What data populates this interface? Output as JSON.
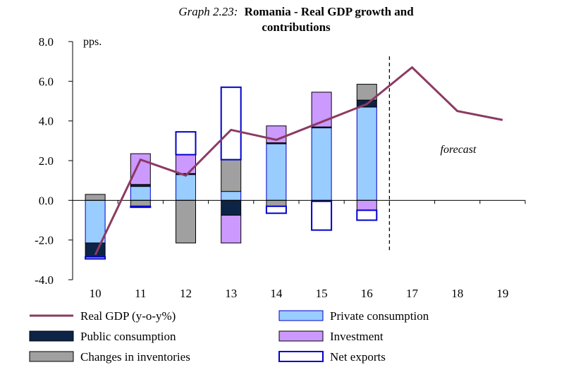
{
  "chart_data": {
    "type": "bar",
    "title_prefix": "Graph 2.23:",
    "title_line1": "Romania - Real GDP growth and",
    "title_line2": "contributions",
    "ylabel": "pps.",
    "xlabel": "",
    "ylim": [
      -4.0,
      8.0
    ],
    "yticks": [
      "8.0",
      "6.0",
      "4.0",
      "2.0",
      "0.0",
      "-2.0",
      "-4.0"
    ],
    "ytick_values": [
      8,
      6,
      4,
      2,
      0,
      -2,
      -4
    ],
    "categories": [
      "10",
      "11",
      "12",
      "13",
      "14",
      "15",
      "16",
      "17",
      "18",
      "19"
    ],
    "annotation": "forecast",
    "forecast_from_index": 6.5,
    "stack_order": [
      "Private consumption",
      "Public consumption",
      "Investment",
      "Changes in inventories",
      "Net exports"
    ],
    "series": [
      {
        "name": "Private consumption",
        "color": "#99ccff",
        "edge": "#0000cc",
        "values": [
          -2.15,
          0.7,
          1.3,
          0.45,
          2.85,
          3.65,
          4.7,
          null,
          null,
          null
        ]
      },
      {
        "name": "Public consumption",
        "color": "#0d2447",
        "edge": "#000000",
        "values": [
          -0.7,
          0.1,
          0.05,
          -0.75,
          0.05,
          0.05,
          0.35,
          null,
          null,
          null
        ]
      },
      {
        "name": "Investment",
        "color": "#cc99ff",
        "edge": "#000000",
        "values": [
          0.0,
          1.55,
          0.95,
          -1.4,
          0.85,
          1.75,
          -0.5,
          null,
          null,
          null
        ]
      },
      {
        "name": "Changes in inventories",
        "color": "#a0a0a0",
        "edge": "#000000",
        "values": [
          0.3,
          -0.3,
          -2.15,
          1.6,
          -0.3,
          -0.05,
          0.8,
          null,
          null,
          null
        ]
      },
      {
        "name": "Net exports",
        "color": "#ffffff",
        "edge": "#0000cc",
        "values": [
          -0.1,
          -0.05,
          1.15,
          3.65,
          -0.35,
          -1.45,
          -0.5,
          null,
          null,
          null
        ]
      }
    ],
    "line": {
      "name": "Real GDP (y-o-y%)",
      "color": "#8b3a62",
      "values": [
        -2.75,
        2.05,
        1.25,
        3.55,
        3.05,
        3.95,
        4.85,
        6.7,
        4.5,
        4.05
      ]
    },
    "legend": [
      "Real GDP (y-o-y%)",
      "Private consumption",
      "Public consumption",
      "Investment",
      "Changes in inventories",
      "Net exports"
    ]
  }
}
